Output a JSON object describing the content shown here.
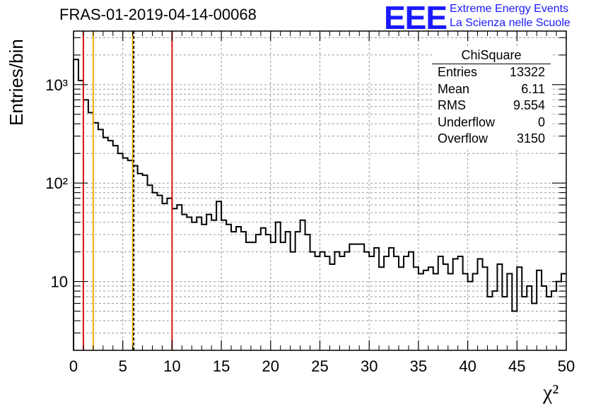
{
  "title": "FRAS-01-2019-04-14-00068",
  "logo": {
    "mark": "EEE",
    "line1": "Extreme Energy Events",
    "line2": "La Scienza nelle Scuole"
  },
  "stats_box": {
    "title": "ChiSquare",
    "rows": [
      {
        "label": "Entries",
        "value": "13322"
      },
      {
        "label": "Mean",
        "value": "6.11"
      },
      {
        "label": "RMS",
        "value": "9.554"
      },
      {
        "label": "Underflow",
        "value": "0"
      },
      {
        "label": "Overflow",
        "value": "3150"
      }
    ]
  },
  "chart_data": {
    "type": "histogram",
    "title": "FRAS-01-2019-04-14-00068",
    "xlabel": "χ²",
    "ylabel": "Entries/bin",
    "xlim": [
      0,
      50
    ],
    "ylim": [
      2,
      3500
    ],
    "yscale": "log",
    "grid": true,
    "bin_width": 0.5,
    "x_ticks": [
      0,
      5,
      10,
      15,
      20,
      25,
      30,
      35,
      40,
      45,
      50
    ],
    "x_tick_labels": [
      "0",
      "5",
      "10",
      "15",
      "20",
      "25",
      "30",
      "35",
      "40",
      "45",
      "50"
    ],
    "y_ticks": [
      10,
      100,
      1000
    ],
    "y_tick_labels": [
      "10",
      "10²",
      "10³"
    ],
    "counts": [
      1800,
      1100,
      700,
      520,
      410,
      350,
      290,
      270,
      240,
      200,
      180,
      170,
      150,
      125,
      120,
      95,
      80,
      75,
      62,
      70,
      55,
      60,
      48,
      45,
      40,
      45,
      38,
      48,
      42,
      65,
      42,
      38,
      32,
      36,
      32,
      25,
      25,
      30,
      35,
      30,
      25,
      40,
      25,
      32,
      20,
      32,
      42,
      30,
      20,
      18,
      20,
      18,
      15,
      20,
      18,
      20,
      24,
      24,
      24,
      20,
      18,
      22,
      14,
      18,
      22,
      18,
      14,
      18,
      20,
      14,
      12,
      13,
      14,
      12,
      18,
      15,
      12,
      17,
      18,
      12,
      10,
      12,
      17,
      14,
      7,
      8,
      15,
      7,
      12,
      5,
      14,
      7,
      9,
      6,
      13,
      9,
      7,
      8,
      10,
      12
    ],
    "vertical_lines": [
      {
        "x": 1,
        "color": "#dd1111",
        "style": "solid"
      },
      {
        "x": 2,
        "color": "#f0b400",
        "style": "solid"
      },
      {
        "x": 6,
        "color": "#f0b400",
        "style": "solid"
      },
      {
        "x": 6.11,
        "color": "#111111",
        "style": "dashed"
      },
      {
        "x": 10,
        "color": "#dd1111",
        "style": "solid"
      }
    ]
  }
}
